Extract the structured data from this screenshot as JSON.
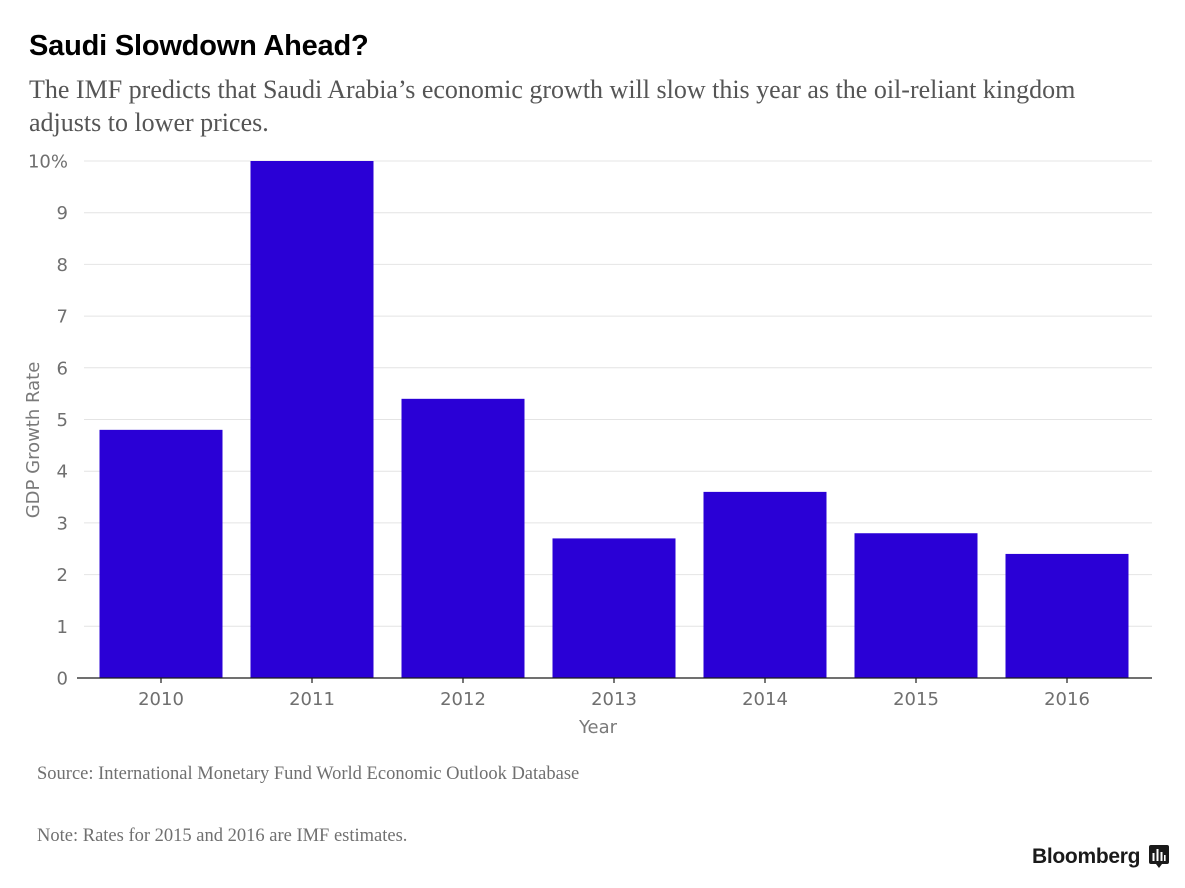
{
  "header": {
    "title": "Saudi Slowdown Ahead?",
    "subtitle": "The IMF predicts that Saudi Arabia’s economic growth will slow this year as the oil-reliant kingdom adjusts to lower prices."
  },
  "footer": {
    "source": "Source: International Monetary Fund World Economic Outlook Database",
    "note": "Note: Rates for 2015 and 2016 are IMF estimates.",
    "logo_text": "Bloomberg",
    "logo_icon": "bloomberg-chart-icon"
  },
  "colors": {
    "bar": "#2a00d6",
    "grid": "#e4e4e4",
    "axis": "#1a1a1a"
  },
  "chart_data": {
    "type": "bar",
    "title": "Saudi Slowdown Ahead?",
    "xlabel": "Year",
    "ylabel": "GDP Growth Rate",
    "categories": [
      "2010",
      "2011",
      "2012",
      "2013",
      "2014",
      "2015",
      "2016"
    ],
    "values": [
      4.8,
      10.0,
      5.4,
      2.7,
      3.6,
      2.8,
      2.4
    ],
    "ylim": [
      0,
      10
    ],
    "yticks": [
      0,
      1,
      2,
      3,
      4,
      5,
      6,
      7,
      8,
      9,
      10
    ],
    "ytick_labels": [
      "0",
      "1",
      "2",
      "3",
      "4",
      "5",
      "6",
      "7",
      "8",
      "9",
      "10%"
    ],
    "grid": true,
    "legend": "none"
  }
}
